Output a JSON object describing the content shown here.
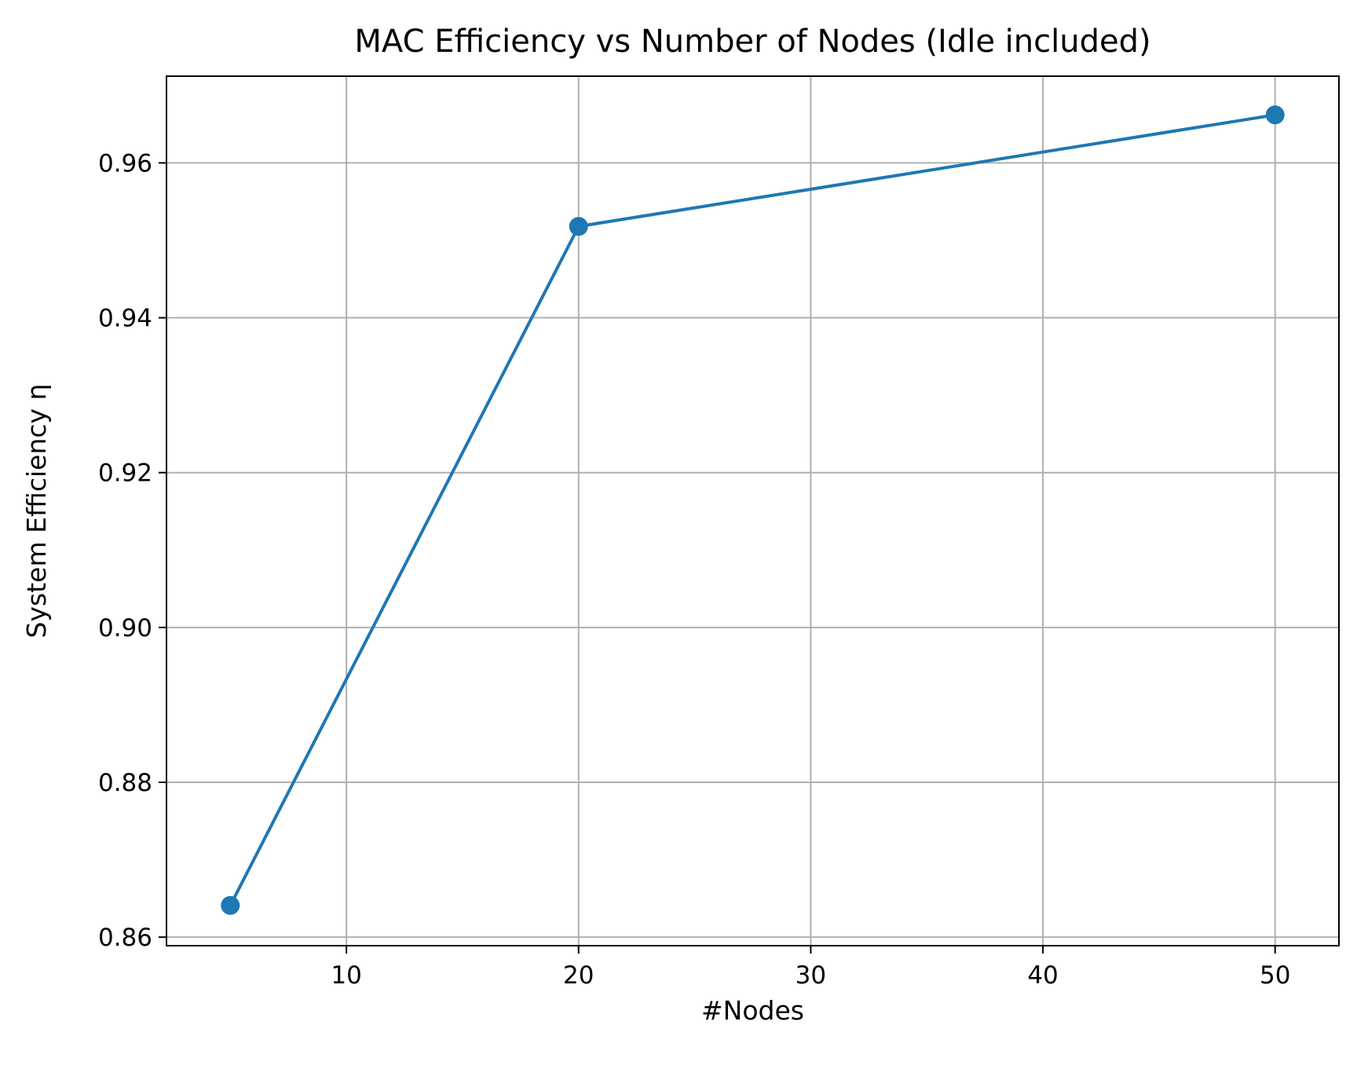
{
  "chart_data": {
    "type": "line",
    "title": "MAC Efficiency vs Number of Nodes (Idle included)",
    "xlabel": "#Nodes",
    "ylabel": "System Efficiency η",
    "xlim": [
      2.25,
      52.75
    ],
    "ylim": [
      0.8589,
      0.9712
    ],
    "x_ticks": [
      10,
      20,
      30,
      40,
      50
    ],
    "y_ticks": [
      0.86,
      0.88,
      0.9,
      0.92,
      0.94,
      0.96
    ],
    "x_tick_labels": [
      "10",
      "20",
      "30",
      "40",
      "50"
    ],
    "y_tick_labels": [
      "0.86",
      "0.88",
      "0.90",
      "0.92",
      "0.94",
      "0.96"
    ],
    "grid": true,
    "series": [
      {
        "x": [
          5,
          20,
          50
        ],
        "values": [
          0.8641,
          0.9518,
          0.9662
        ],
        "color": "#1f77b4",
        "marker": "circle"
      }
    ]
  }
}
